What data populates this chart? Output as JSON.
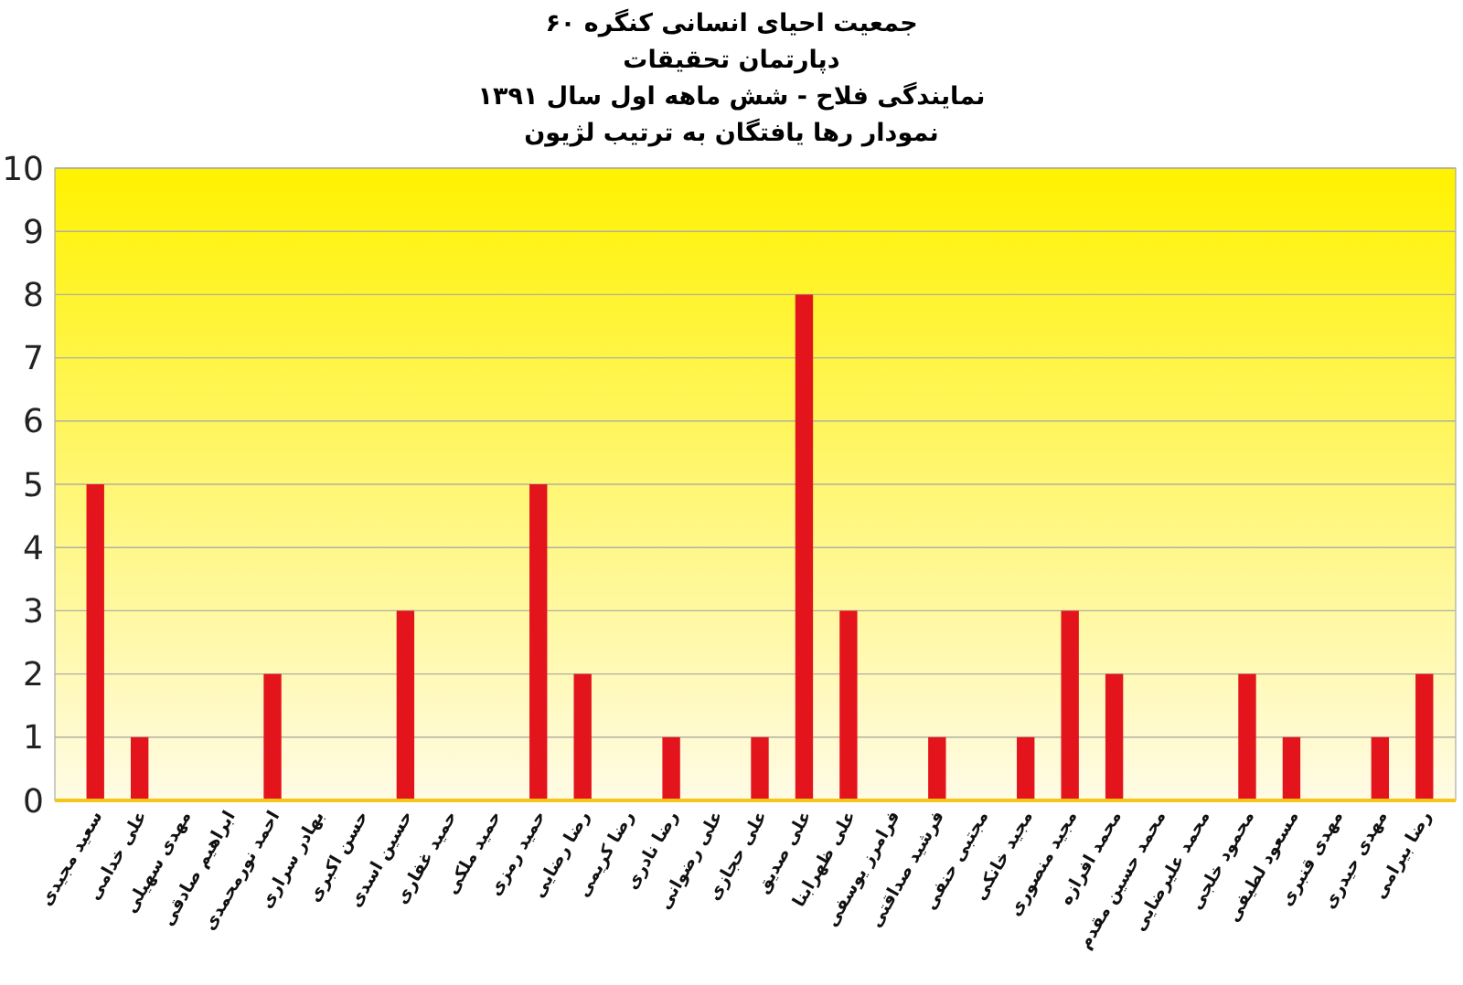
{
  "chart_data": {
    "type": "bar",
    "title": "جمعیت احیای انسانی کنگره ۶۰\nدپارتمان تحقیقات\nنمایندگی فلاح  - شش ماهه اول سال ۱۳۹۱\nنمودار رها یافتگان به ترتیب لژیون",
    "categories": [
      "سعید مجیدی",
      "علی خدامی",
      "مهدی سهیلی",
      "ابراهیم صادقی",
      "احمد نورمحمدی",
      "بهادر سراری",
      "حسن اکبری",
      "حسین اسدی",
      "حمید غفاری",
      "حمید ملکی",
      "حمید رمزی",
      "رضا رضایی",
      "رضا کریمی",
      "رضا نادری",
      "علی رضوانی",
      "علی حجازی",
      "علی صدیق",
      "علی ظهرابنا",
      "فرامرز یوسفی",
      "فرشید صداقتی",
      "مجتبی حنفی",
      "مجید خانکی",
      "مجید منصوری",
      "محمد افرازه",
      "محمد حسین مقدم",
      "محمد علیرضایی",
      "محمود خلجی",
      "مسعود لطیفی",
      "مهدی قنبری",
      "مهدی حیدری",
      "رضا بیرامی"
    ],
    "values": [
      5,
      1,
      0,
      0,
      2,
      0,
      0,
      3,
      0,
      0,
      5,
      2,
      0,
      1,
      0,
      1,
      8,
      3,
      0,
      1,
      0,
      1,
      3,
      2,
      0,
      0,
      2,
      1,
      0,
      1,
      2
    ],
    "color": "#e3141b",
    "ylim": [
      0,
      10
    ],
    "yticks": [
      0,
      1,
      2,
      3,
      4,
      5,
      6,
      7,
      8,
      9,
      10
    ],
    "grid": "y"
  }
}
